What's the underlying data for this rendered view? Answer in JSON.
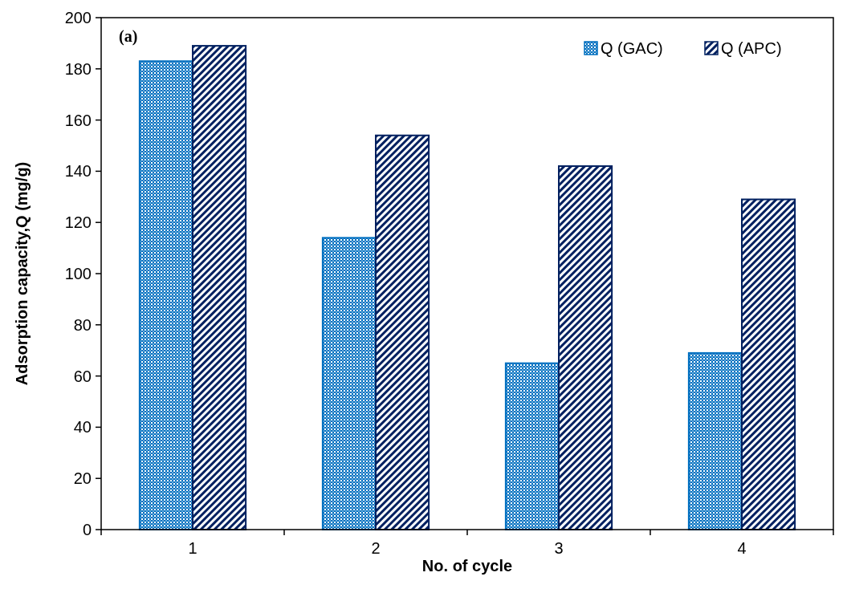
{
  "chart_data": {
    "type": "bar",
    "xlabel": "No. of cycle",
    "ylabel": "Adsorption capacity,Q (mg/g)",
    "categories": [
      "1",
      "2",
      "3",
      "4"
    ],
    "series": [
      {
        "name": "Q (GAC)",
        "color": "#0070c0",
        "values": [
          183,
          114,
          65,
          69
        ]
      },
      {
        "name": "Q (APC)",
        "color": "#002060",
        "values": [
          189,
          154,
          142,
          129
        ]
      }
    ],
    "ylim": [
      0,
      200
    ],
    "yticks": [
      0,
      20,
      40,
      60,
      80,
      100,
      120,
      140,
      160,
      180,
      200
    ],
    "legend": "top right",
    "grid": false,
    "annotations": [
      "(a)"
    ]
  }
}
